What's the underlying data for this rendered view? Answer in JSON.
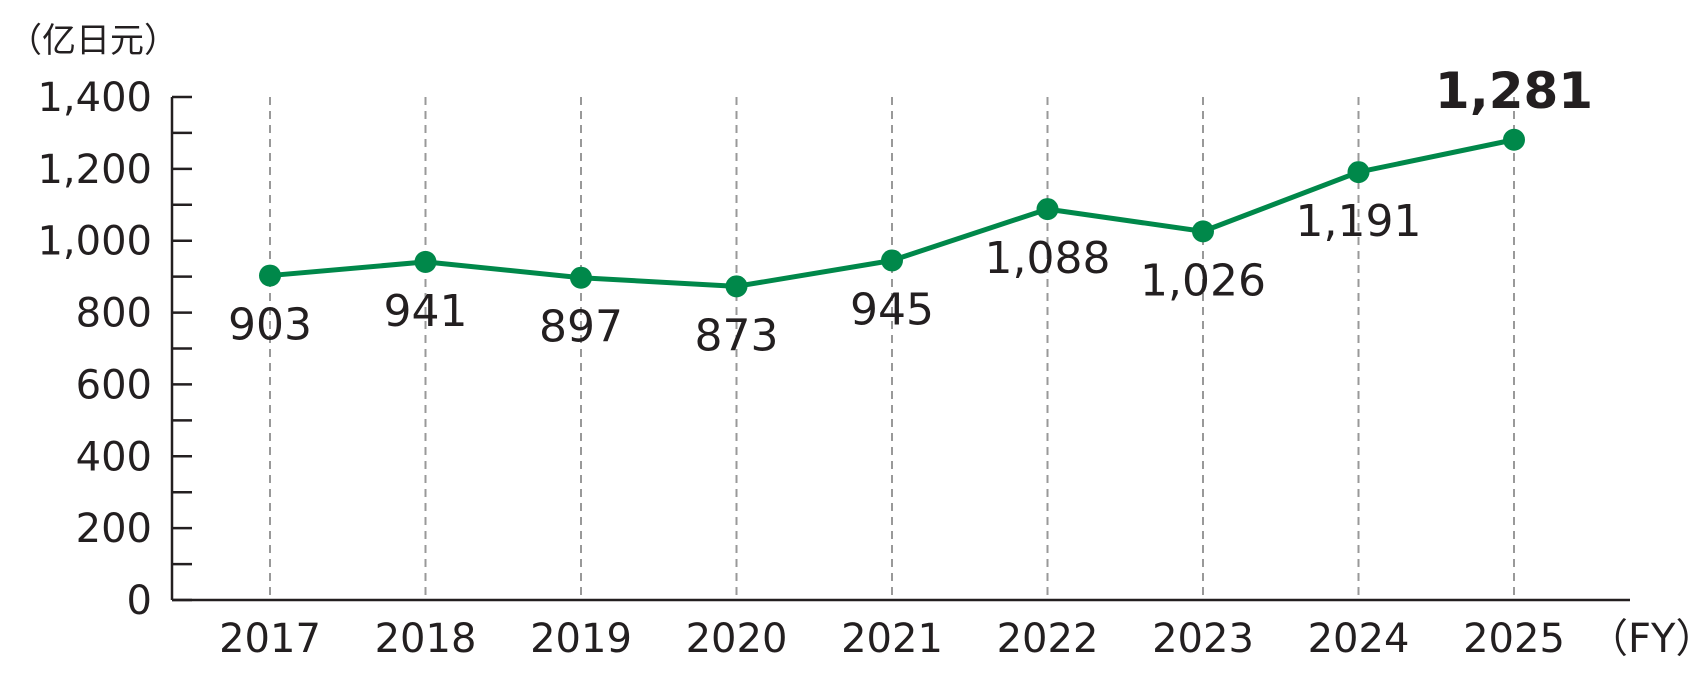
{
  "chart_data": {
    "type": "line",
    "title": "",
    "ylabel": "（亿日元）",
    "xlabel": "（FY）",
    "categories": [
      "2017",
      "2018",
      "2019",
      "2020",
      "2021",
      "2022",
      "2023",
      "2024",
      "2025"
    ],
    "series": [
      {
        "values": [
          903,
          941,
          897,
          873,
          945,
          1088,
          1026,
          1191,
          1281
        ],
        "labels": [
          "903",
          "941",
          "897",
          "873",
          "945",
          "1,088",
          "1,026",
          "1,191",
          "1,281"
        ],
        "color": "#00884a"
      }
    ],
    "ylim": [
      0,
      1400
    ],
    "yticks": [
      0,
      200,
      400,
      600,
      800,
      1000,
      1200,
      1400
    ],
    "ytick_labels": [
      "0",
      "200",
      "400",
      "600",
      "800",
      "1,000",
      "1,200",
      "1,400"
    ],
    "grid": "vertical-dashed",
    "highlight_last_label": true,
    "colors": {
      "line": "#00884a",
      "axis": "#231f20",
      "grid": "#999999"
    }
  }
}
